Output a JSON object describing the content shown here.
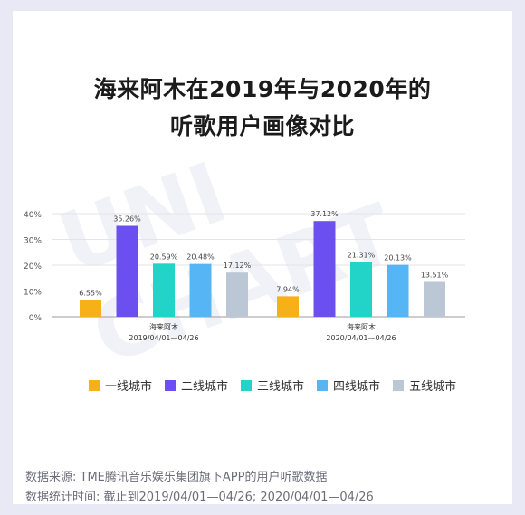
{
  "page": {
    "title_line1": "海来阿木在2019年与2020年的",
    "title_line2": "听歌用户画像对比",
    "watermark": "UNI CHART",
    "source_line1": "数据来源: TME腾讯音乐娱乐集团旗下APP的用户听歌数据",
    "source_line2": "数据统计时间: 截止到2019/04/01—04/26; 2020/04/01—04/26"
  },
  "chart_data": {
    "type": "bar",
    "groups": [
      {
        "name": "海来阿木",
        "period": "2019/04/01—04/26"
      },
      {
        "name": "海来阿木",
        "period": "2020/04/01—04/26"
      }
    ],
    "y_ticks": [
      "40%",
      "30%",
      "20%",
      "10%",
      "0%"
    ],
    "ylim": [
      0,
      40
    ],
    "grid": true,
    "legend_position": "bottom",
    "series": [
      {
        "name": "一线城市",
        "color": "#f5b117",
        "values": [
          6.55,
          7.94
        ],
        "labels": [
          "6.55%",
          "7.94%"
        ]
      },
      {
        "name": "二线城市",
        "color": "#6c4ff0",
        "values": [
          35.26,
          37.12
        ],
        "labels": [
          "35.26%",
          "37.12%"
        ]
      },
      {
        "name": "三线城市",
        "color": "#22d3c8",
        "values": [
          20.59,
          21.31
        ],
        "labels": [
          "20.59%",
          "21.31%"
        ]
      },
      {
        "name": "四线城市",
        "color": "#56b6f5",
        "values": [
          20.48,
          20.13
        ],
        "labels": [
          "20.48%",
          "20.13%"
        ]
      },
      {
        "name": "五线城市",
        "color": "#bcc7d6",
        "values": [
          17.12,
          13.51
        ],
        "labels": [
          "17.12%",
          "13.51%"
        ]
      }
    ]
  }
}
